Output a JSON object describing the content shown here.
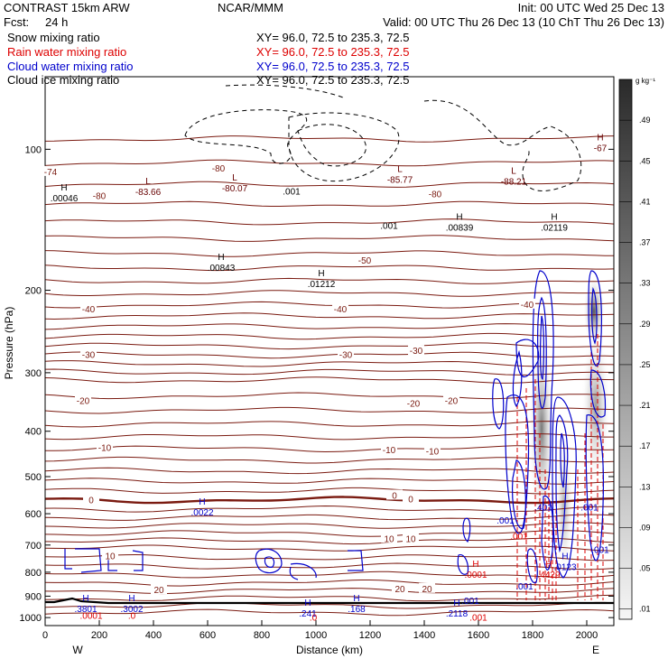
{
  "header": {
    "model": "CONTRAST 15km ARW",
    "org": "NCAR/MMM",
    "init": "Init: 00 UTC Wed 25 Dec 13",
    "fcst_label": "Fcst:",
    "fcst_value": "24 h",
    "valid": "Valid: 00 UTC Thu 26 Dec 13 (10 ChT Thu 26 Dec 13)",
    "fields": [
      {
        "name": "Snow mixing ratio",
        "xy": "XY=  96.0, 72.5 to 235.3, 72.5",
        "color": "#000000"
      },
      {
        "name": "Rain water mixing ratio",
        "xy": "XY=  96.0, 72.5 to 235.3, 72.5",
        "color": "#dd0000"
      },
      {
        "name": "Cloud water mixing ratio",
        "xy": "XY=  96.0, 72.5 to 235.3, 72.5",
        "color": "#0000cc"
      },
      {
        "name": "Cloud ice mixing ratio",
        "xy": "XY=  96.0, 72.5 to 235.3, 72.5",
        "color": "#000000"
      }
    ]
  },
  "chart_data": {
    "type": "contour",
    "xlabel": "Distance (km)",
    "ylabel": "Pressure (hPa)",
    "xlim": [
      0,
      2100
    ],
    "x_ticks": [
      0,
      200,
      400,
      600,
      800,
      1000,
      1200,
      1400,
      1600,
      1800,
      2000
    ],
    "y_scale": "log",
    "ylim": [
      1040,
      70
    ],
    "y_ticks": [
      100,
      200,
      300,
      400,
      500,
      600,
      700,
      800,
      900,
      1000
    ],
    "x_end_labels": {
      "left": "W",
      "right": "E"
    },
    "colorbar": {
      "units": "g kg⁻¹",
      "values": [
        0.01,
        0.05,
        0.09,
        0.13,
        0.17,
        0.21,
        0.25,
        0.29,
        0.33,
        0.37,
        0.41,
        0.45,
        0.49
      ],
      "labels": [
        ".01",
        ".05",
        ".09",
        ".13",
        ".17",
        ".21",
        ".25",
        ".29",
        ".33",
        ".37",
        ".41",
        ".45",
        ".49"
      ]
    },
    "temperature_labels": [
      {
        "t": "-74",
        "x": 20,
        "p": 112
      },
      {
        "t": "-80",
        "x": 200,
        "p": 126
      },
      {
        "t": "-80",
        "x": 640,
        "p": 110
      },
      {
        "t": "-80",
        "x": 1440,
        "p": 125
      },
      {
        "t": "-50",
        "x": 1180,
        "p": 173
      },
      {
        "t": "-40",
        "x": 160,
        "p": 220
      },
      {
        "t": "-40",
        "x": 1090,
        "p": 220
      },
      {
        "t": "-40",
        "x": 1780,
        "p": 215
      },
      {
        "t": "-30",
        "x": 160,
        "p": 275
      },
      {
        "t": "-30",
        "x": 1110,
        "p": 275
      },
      {
        "t": "-30",
        "x": 1370,
        "p": 270
      },
      {
        "t": "-20",
        "x": 140,
        "p": 345
      },
      {
        "t": "-20",
        "x": 1360,
        "p": 350
      },
      {
        "t": "-20",
        "x": 1500,
        "p": 345
      },
      {
        "t": "-10",
        "x": 220,
        "p": 435
      },
      {
        "t": "-10",
        "x": 1270,
        "p": 440
      },
      {
        "t": "-10",
        "x": 1430,
        "p": 443
      },
      {
        "t": "0",
        "x": 170,
        "p": 562
      },
      {
        "t": "0",
        "x": 1290,
        "p": 550
      },
      {
        "t": "0",
        "x": 1350,
        "p": 560
      },
      {
        "t": "10",
        "x": 1270,
        "p": 680
      },
      {
        "t": "10",
        "x": 1350,
        "p": 680
      },
      {
        "t": "10",
        "x": 240,
        "p": 740
      },
      {
        "t": "20",
        "x": 420,
        "p": 875
      },
      {
        "t": "20",
        "x": 1310,
        "p": 870
      },
      {
        "t": "20",
        "x": 1410,
        "p": 870
      }
    ],
    "extrema": [
      {
        "kind": "L",
        "value": "-83.66",
        "x": 380,
        "p": 124,
        "color": "#660000"
      },
      {
        "kind": "L",
        "value": "-80.07",
        "x": 700,
        "p": 122,
        "color": "#660000"
      },
      {
        "kind": "L",
        "value": "-85.77",
        "x": 1310,
        "p": 117,
        "color": "#660000"
      },
      {
        "kind": "L",
        "value": "-88.21",
        "x": 1730,
        "p": 118,
        "color": "#660000"
      },
      {
        "kind": "H",
        "value": "-67",
        "x": 2050,
        "p": 100,
        "color": "#660000"
      },
      {
        "kind": "H",
        "value": ".00046",
        "x": 70,
        "p": 128,
        "color": "#000000"
      },
      {
        "kind": "H",
        "value": ".00843",
        "x": 650,
        "p": 180,
        "color": "#000000"
      },
      {
        "kind": "H",
        "value": ".01212",
        "x": 1020,
        "p": 195,
        "color": "#000000"
      },
      {
        "kind": "H",
        "value": ".00839",
        "x": 1530,
        "p": 148,
        "color": "#000000"
      },
      {
        "kind": "H",
        "value": ".02119",
        "x": 1880,
        "p": 148,
        "color": "#000000"
      },
      {
        "kind": "H",
        "value": ".0022",
        "x": 580,
        "p": 600,
        "color": "#0000cc"
      },
      {
        "kind": "H",
        "value": ".3801",
        "x": 150,
        "p": 965,
        "color": "#0000cc"
      },
      {
        "kind": "H",
        "value": ".3002",
        "x": 320,
        "p": 965,
        "color": "#0000cc"
      },
      {
        "kind": "H",
        "value": ".241",
        "x": 970,
        "p": 985,
        "color": "#0000cc"
      },
      {
        "kind": "H",
        "value": ".168",
        "x": 1150,
        "p": 965,
        "color": "#0000cc"
      },
      {
        "kind": "H",
        "value": ".2118",
        "x": 1520,
        "p": 985,
        "color": "#0000cc"
      },
      {
        "kind": "H",
        "value": ".0001",
        "x": 1590,
        "p": 815,
        "color": "#dd0000"
      },
      {
        "kind": "H",
        "value": ".4429",
        "x": 1860,
        "p": 815,
        "color": "#dd0000"
      },
      {
        "kind": "H",
        "value": ".0123",
        "x": 1920,
        "p": 785,
        "color": "#0000cc"
      }
    ],
    "misc_labels": [
      {
        "t": ".001",
        "x": 910,
        "p": 125,
        "color": "#000000"
      },
      {
        "t": ".001",
        "x": 1270,
        "p": 148,
        "color": "#000000"
      },
      {
        "t": ".001",
        "x": 1570,
        "p": 935,
        "color": "#0000cc"
      },
      {
        "t": ".001",
        "x": 1600,
        "p": 1015,
        "color": "#dd0000"
      },
      {
        "t": ".001",
        "x": 1700,
        "p": 630,
        "color": "#0000cc"
      },
      {
        "t": ".001",
        "x": 1750,
        "p": 680,
        "color": "#dd0000"
      },
      {
        "t": ".001",
        "x": 1770,
        "p": 870,
        "color": "#0000cc"
      },
      {
        "t": ".401",
        "x": 1840,
        "p": 590,
        "color": "#0000cc"
      },
      {
        "t": ".001",
        "x": 2010,
        "p": 590,
        "color": "#0000cc"
      },
      {
        "t": ".001",
        "x": 2050,
        "p": 728,
        "color": "#0000cc"
      },
      {
        "t": ".0001",
        "x": 170,
        "p": 1005,
        "color": "#dd0000"
      },
      {
        "t": ".0",
        "x": 320,
        "p": 1005,
        "color": "#dd0000"
      },
      {
        "t": ".0",
        "x": 990,
        "p": 1015,
        "color": "#dd0000"
      }
    ]
  }
}
